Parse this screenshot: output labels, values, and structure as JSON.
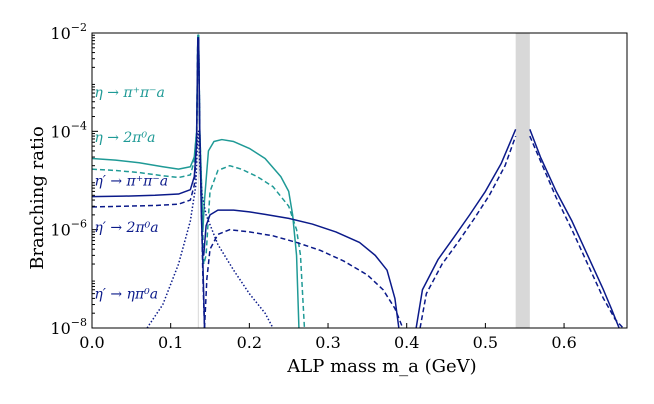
{
  "chart_data": {
    "type": "line",
    "title": "",
    "xlabel": "ALP mass m_a (GeV)",
    "ylabel": "Branching ratio",
    "xscale": "linear",
    "yscale": "log",
    "xlim": [
      0.0,
      0.68
    ],
    "ylim": [
      1e-08,
      0.01
    ],
    "x_ticks": [
      0.0,
      0.1,
      0.2,
      0.3,
      0.4,
      0.5,
      0.6
    ],
    "x_tick_labels": [
      "0.0",
      "0.1",
      "0.2",
      "0.3",
      "0.4",
      "0.5",
      "0.6"
    ],
    "y_ticks": [
      1e-08,
      1e-06,
      0.0001,
      0.01
    ],
    "y_tick_labels": [
      {
        "base": "10",
        "exp": "−8"
      },
      {
        "base": "10",
        "exp": "−6"
      },
      {
        "base": "10",
        "exp": "−4"
      },
      {
        "base": "10",
        "exp": "−2"
      }
    ],
    "shaded_bands": [
      {
        "x0": 0.1345,
        "x1": 0.1355,
        "color": "#d8d8d8"
      },
      {
        "x0": 0.5385,
        "x1": 0.5565,
        "color": "#d8d8d8"
      }
    ],
    "series": [
      {
        "name": "η → π⁺π⁻a",
        "color": "#1f9a96",
        "style": "solid",
        "points": [
          [
            0.0,
            2.8e-05
          ],
          [
            0.03,
            2.6e-05
          ],
          [
            0.06,
            2.3e-05
          ],
          [
            0.09,
            1.9e-05
          ],
          [
            0.11,
            1.7e-05
          ],
          [
            0.125,
            1.9e-05
          ],
          [
            0.13,
            3e-05
          ],
          [
            0.133,
            0.0001
          ],
          [
            0.1345,
            0.009
          ],
          [
            0.1355,
            0.009
          ],
          [
            0.137,
            0.0001
          ],
          [
            0.139,
            1e-05
          ],
          [
            0.141,
            1e-06
          ],
          [
            0.143,
            4e-06
          ],
          [
            0.148,
            4e-05
          ],
          [
            0.155,
            6.2e-05
          ],
          [
            0.165,
            6.8e-05
          ],
          [
            0.18,
            6.2e-05
          ],
          [
            0.2,
            4.5e-05
          ],
          [
            0.22,
            2.8e-05
          ],
          [
            0.24,
            1.2e-05
          ],
          [
            0.25,
            6e-06
          ],
          [
            0.255,
            2e-06
          ],
          [
            0.26,
            3e-07
          ],
          [
            0.263,
            1e-08
          ]
        ]
      },
      {
        "name": "η → 2π⁰a",
        "color": "#1f9a96",
        "style": "dashed",
        "points": [
          [
            0.0,
            1.7e-05
          ],
          [
            0.03,
            1.6e-05
          ],
          [
            0.06,
            1.45e-05
          ],
          [
            0.09,
            1.25e-05
          ],
          [
            0.11,
            1.15e-05
          ],
          [
            0.125,
            1.3e-05
          ],
          [
            0.13,
            2.5e-05
          ],
          [
            0.133,
            0.0001
          ],
          [
            0.1345,
            0.009
          ],
          [
            0.1355,
            0.009
          ],
          [
            0.137,
            0.0001
          ],
          [
            0.139,
            1e-05
          ],
          [
            0.142,
            2e-07
          ],
          [
            0.145,
            3e-07
          ],
          [
            0.15,
            6e-06
          ],
          [
            0.16,
            1.6e-05
          ],
          [
            0.175,
            2e-05
          ],
          [
            0.19,
            1.7e-05
          ],
          [
            0.21,
            1.2e-05
          ],
          [
            0.23,
            7.5e-06
          ],
          [
            0.25,
            3e-06
          ],
          [
            0.26,
            1e-06
          ],
          [
            0.265,
            3e-07
          ],
          [
            0.27,
            1e-08
          ]
        ]
      },
      {
        "name": "η′ → π⁺π⁻a",
        "color": "#0b1a8a",
        "style": "solid",
        "points": [
          [
            0.0,
            4.7e-06
          ],
          [
            0.04,
            4.8e-06
          ],
          [
            0.08,
            5e-06
          ],
          [
            0.11,
            5.3e-06
          ],
          [
            0.125,
            6.5e-06
          ],
          [
            0.13,
            1.2e-05
          ],
          [
            0.133,
            6e-05
          ],
          [
            0.1345,
            0.008
          ],
          [
            0.1355,
            0.008
          ],
          [
            0.137,
            0.0001
          ],
          [
            0.139,
            2e-06
          ],
          [
            0.141,
            2e-07
          ],
          [
            0.143,
            1e-08
          ]
        ]
      },
      {
        "name": "η′ → π⁺π⁻a (high m)",
        "color": "#0b1a8a",
        "style": "solid",
        "points": [
          [
            0.142,
            3e-07
          ],
          [
            0.145,
            1.2e-06
          ],
          [
            0.15,
            2e-06
          ],
          [
            0.16,
            2.5e-06
          ],
          [
            0.18,
            2.5e-06
          ],
          [
            0.2,
            2.3e-06
          ],
          [
            0.22,
            2.05e-06
          ],
          [
            0.25,
            1.7e-06
          ],
          [
            0.28,
            1.3e-06
          ],
          [
            0.31,
            9e-07
          ],
          [
            0.34,
            5.5e-07
          ],
          [
            0.36,
            3e-07
          ],
          [
            0.375,
            1.5e-07
          ],
          [
            0.385,
            4e-08
          ],
          [
            0.39,
            1e-08
          ]
        ]
      },
      {
        "name": "η′ → 2π⁰a",
        "color": "#0b1a8a",
        "style": "dashed",
        "points": [
          [
            0.0,
            2.9e-06
          ],
          [
            0.04,
            3e-06
          ],
          [
            0.08,
            3.1e-06
          ],
          [
            0.11,
            3.3e-06
          ],
          [
            0.125,
            4e-06
          ],
          [
            0.13,
            8e-06
          ],
          [
            0.133,
            5e-05
          ],
          [
            0.1345,
            0.008
          ],
          [
            0.1355,
            0.008
          ],
          [
            0.137,
            0.0001
          ],
          [
            0.139,
            3e-06
          ],
          [
            0.141,
            1e-07
          ],
          [
            0.143,
            1e-08
          ]
        ]
      },
      {
        "name": "η′ → 2π⁰a (high m)",
        "color": "#0b1a8a",
        "style": "dashed",
        "points": [
          [
            0.143,
            1e-08
          ],
          [
            0.146,
            1e-07
          ],
          [
            0.15,
            4e-07
          ],
          [
            0.16,
            8e-07
          ],
          [
            0.175,
            1e-06
          ],
          [
            0.2,
            9e-07
          ],
          [
            0.23,
            7.5e-07
          ],
          [
            0.26,
            5.5e-07
          ],
          [
            0.29,
            3.8e-07
          ],
          [
            0.32,
            2.3e-07
          ],
          [
            0.35,
            1.2e-07
          ],
          [
            0.37,
            6e-08
          ],
          [
            0.385,
            2.5e-08
          ],
          [
            0.395,
            1e-08
          ]
        ]
      },
      {
        "name": "η′ → π⁺π⁻a (upper)",
        "color": "#0b1a8a",
        "style": "solid",
        "points": [
          [
            0.412,
            1e-08
          ],
          [
            0.42,
            6e-08
          ],
          [
            0.44,
            2.5e-07
          ],
          [
            0.46,
            7e-07
          ],
          [
            0.48,
            2e-06
          ],
          [
            0.5,
            6e-06
          ],
          [
            0.52,
            2.2e-05
          ],
          [
            0.5385,
            0.00011
          ]
        ]
      },
      {
        "name": "η′ → π⁺π⁻a (upper, right)",
        "color": "#0b1a8a",
        "style": "solid",
        "points": [
          [
            0.5565,
            0.00011
          ],
          [
            0.57,
            3e-05
          ],
          [
            0.59,
            6e-06
          ],
          [
            0.61,
            1.5e-06
          ],
          [
            0.63,
            3e-07
          ],
          [
            0.65,
            6e-08
          ],
          [
            0.66,
            2.5e-08
          ],
          [
            0.67,
            1e-08
          ]
        ]
      },
      {
        "name": "η′ → 2π⁰a (upper)",
        "color": "#0b1a8a",
        "style": "dashed",
        "points": [
          [
            0.417,
            1e-08
          ],
          [
            0.425,
            5e-08
          ],
          [
            0.445,
            2e-07
          ],
          [
            0.465,
            5.5e-07
          ],
          [
            0.485,
            1.6e-06
          ],
          [
            0.505,
            5e-06
          ],
          [
            0.525,
            2e-05
          ],
          [
            0.5385,
            8e-05
          ]
        ]
      },
      {
        "name": "η′ → 2π⁰a (upper, right)",
        "color": "#0b1a8a",
        "style": "dashed",
        "points": [
          [
            0.5565,
            8e-05
          ],
          [
            0.57,
            2.5e-05
          ],
          [
            0.59,
            4.5e-06
          ],
          [
            0.61,
            1e-06
          ],
          [
            0.63,
            2e-07
          ],
          [
            0.65,
            4e-08
          ],
          [
            0.665,
            1.5e-08
          ],
          [
            0.675,
            1e-08
          ]
        ]
      },
      {
        "name": "η′ → ηπ⁰a",
        "color": "#0b1a8a",
        "style": "dotted",
        "points": [
          [
            0.07,
            1e-08
          ],
          [
            0.09,
            3e-08
          ],
          [
            0.11,
            2e-07
          ],
          [
            0.125,
            1.5e-06
          ],
          [
            0.132,
            8e-06
          ],
          [
            0.1345,
            0.0001
          ],
          [
            0.1355,
            0.0001
          ],
          [
            0.137,
            2e-05
          ],
          [
            0.14,
            5e-06
          ],
          [
            0.145,
            2e-06
          ],
          [
            0.16,
            5e-07
          ],
          [
            0.18,
            1.5e-07
          ],
          [
            0.2,
            5e-08
          ],
          [
            0.22,
            2e-08
          ],
          [
            0.23,
            1e-08
          ]
        ]
      }
    ],
    "labels": [
      {
        "text": "η → π⁺π⁻a",
        "series": 0
      },
      {
        "text": "η → 2π⁰a",
        "series": 1
      },
      {
        "text": "η′ → π⁺π⁻a",
        "series": 2
      },
      {
        "text": "η′ → 2π⁰a",
        "series": 4
      },
      {
        "text": "η′ → ηπ⁰a",
        "series": 10
      }
    ]
  }
}
